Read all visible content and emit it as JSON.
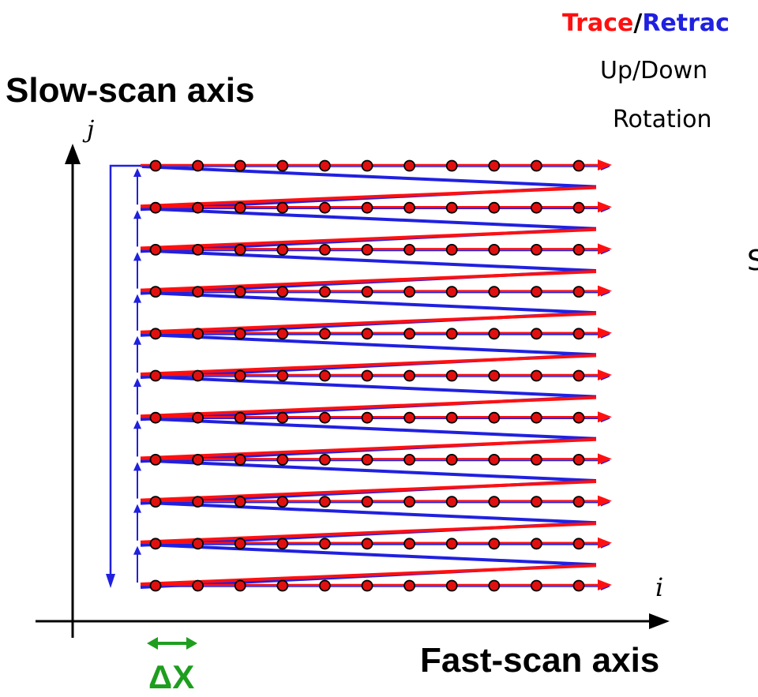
{
  "labels": {
    "slow_axis": "Slow-scan axis",
    "fast_axis": "Fast-scan axis",
    "trace": "Trace",
    "separator": "/",
    "retrace": "Retrac",
    "up_down": "Up/Down",
    "rotation": "Rotation",
    "s_fragment": "S",
    "j_axis": "j",
    "i_axis": "i",
    "delta_x": "ΔX"
  },
  "colors": {
    "trace": "#ff1010",
    "retrace": "#2020e0",
    "axes": "#000000",
    "point_fill": "#e01010",
    "point_stroke": "#000000",
    "delta": "#1e9e1e"
  },
  "grid": {
    "rows": 11,
    "columns": 11
  }
}
